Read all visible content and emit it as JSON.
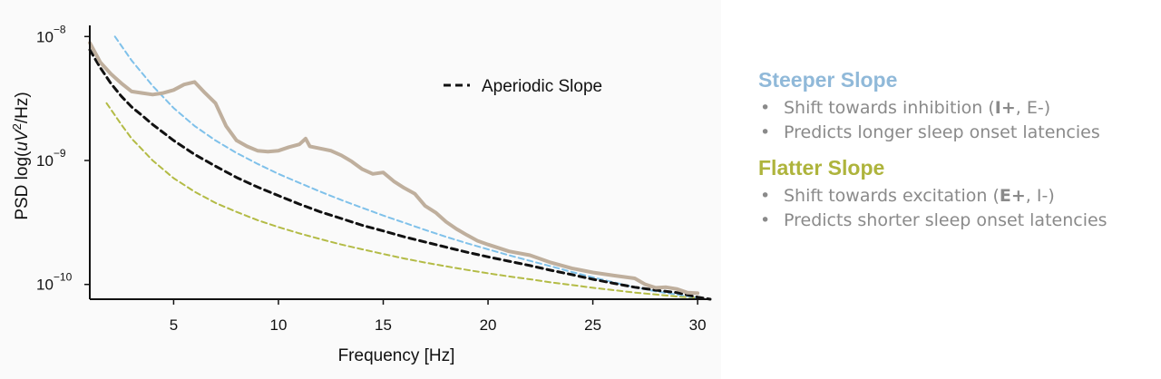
{
  "chart_data": {
    "type": "line",
    "xlabel": "Frequency [Hz]",
    "ylabel_prefix": "PSD log(",
    "ylabel_unit_base": "uV",
    "ylabel_unit_exp": "2",
    "ylabel_suffix": "/Hz)",
    "x_ticks": [
      5,
      10,
      15,
      20,
      25,
      30
    ],
    "y_ticks": [
      {
        "value": 1e-08,
        "base": "10",
        "exp": "−8"
      },
      {
        "value": 1e-09,
        "base": "10",
        "exp": "−9"
      },
      {
        "value": 1e-10,
        "base": "10",
        "exp": "−10"
      }
    ],
    "xlim": [
      1,
      30.6
    ],
    "ylim": [
      7.6e-11,
      1.23e-08
    ],
    "y_scale": "log",
    "grid": false,
    "legend": {
      "position": "top-center",
      "label": "Aperiodic Slope",
      "color": "#111111"
    },
    "colors": {
      "psd": "#bfaf9d",
      "aperiodic": "#111111",
      "steeper": "#7fc1ea",
      "flatter": "#b3bb45"
    },
    "series": [
      {
        "key": "psd",
        "style": "solid",
        "x": [
          1.0,
          1.5,
          2.0,
          2.5,
          3.0,
          3.5,
          4.0,
          4.5,
          5.0,
          5.5,
          6.0,
          6.5,
          7.0,
          7.5,
          8.0,
          8.5,
          9.0,
          9.5,
          10.0,
          10.5,
          11.0,
          11.3,
          11.5,
          12.0,
          12.5,
          13.0,
          13.5,
          14.0,
          14.5,
          15.0,
          15.5,
          16.0,
          16.5,
          17.0,
          17.5,
          18.0,
          18.5,
          19.0,
          19.5,
          20.0,
          21.0,
          22.0,
          23.0,
          24.0,
          25.0,
          26.0,
          27.0,
          27.5,
          28.0,
          28.5,
          29.0,
          29.5,
          30.0
        ],
        "y": [
          8.9e-09,
          6.2e-09,
          5e-09,
          4.2e-09,
          3.6e-09,
          3.5e-09,
          3.4e-09,
          3.5e-09,
          3.7e-09,
          4.1e-09,
          4.3e-09,
          3.5e-09,
          2.9e-09,
          1.9e-09,
          1.45e-09,
          1.3e-09,
          1.2e-09,
          1.18e-09,
          1.2e-09,
          1.28e-09,
          1.35e-09,
          1.5e-09,
          1.3e-09,
          1.25e-09,
          1.2e-09,
          1.1e-09,
          9.8e-10,
          8.5e-10,
          7.8e-10,
          8e-10,
          6.8e-10,
          6e-10,
          5.4e-10,
          4.3e-10,
          3.8e-10,
          3.2e-10,
          2.8e-10,
          2.5e-10,
          2.25e-10,
          2.1e-10,
          1.85e-10,
          1.72e-10,
          1.5e-10,
          1.35e-10,
          1.25e-10,
          1.18e-10,
          1.12e-10,
          1e-10,
          9.4e-11,
          9.5e-11,
          9.2e-11,
          8.6e-11,
          8.5e-11
        ]
      },
      {
        "key": "aperiodic",
        "style": "dashed",
        "x": [
          1.0,
          1.5,
          2.0,
          2.5,
          3.0,
          3.5,
          4.0,
          5.0,
          6.0,
          7.0,
          8.0,
          9.0,
          10.0,
          11.0,
          12.0,
          13.0,
          14.0,
          15.0,
          16.0,
          17.0,
          18.0,
          19.0,
          20.0,
          21.0,
          22.0,
          23.0,
          24.0,
          25.0,
          26.0,
          27.0,
          28.0,
          29.0,
          30.0,
          30.6
        ],
        "y": [
          7.8e-09,
          5.6e-09,
          4.2e-09,
          3.3e-09,
          2.7e-09,
          2.3e-09,
          1.95e-09,
          1.45e-09,
          1.12e-09,
          9e-10,
          7.3e-10,
          6.1e-10,
          5.2e-10,
          4.45e-10,
          3.85e-10,
          3.4e-10,
          3e-10,
          2.7e-10,
          2.42e-10,
          2.2e-10,
          2e-10,
          1.82e-10,
          1.67e-10,
          1.54e-10,
          1.42e-10,
          1.3e-10,
          1.2e-10,
          1.1e-10,
          1.02e-10,
          9.5e-11,
          9e-11,
          8.6e-11,
          7.9e-11,
          7.6e-11
        ]
      },
      {
        "key": "steeper",
        "style": "dashed",
        "x": [
          2.2,
          3.0,
          4.0,
          5.0,
          6.0,
          7.0,
          8.0,
          9.0,
          10.0,
          11.0,
          12.0,
          13.0,
          14.0,
          15.0,
          16.0,
          17.0,
          18.0,
          19.0,
          20.0,
          21.0,
          22.0,
          23.0,
          24.0,
          25.0,
          26.0,
          27.0,
          28.0,
          29.0,
          30.0
        ],
        "y": [
          1e-08,
          6.4e-09,
          4e-09,
          2.65e-09,
          1.9e-09,
          1.45e-09,
          1.15e-09,
          9.4e-10,
          7.8e-10,
          6.6e-10,
          5.6e-10,
          4.8e-10,
          4.15e-10,
          3.6e-10,
          3.15e-10,
          2.75e-10,
          2.42e-10,
          2.15e-10,
          1.92e-10,
          1.72e-10,
          1.55e-10,
          1.4e-10,
          1.26e-10,
          1.14e-10,
          1.04e-10,
          9.5e-11,
          8.8e-11,
          8.3e-11,
          7.8e-11
        ]
      },
      {
        "key": "flatter",
        "style": "dashed",
        "x": [
          1.8,
          2.5,
          3.0,
          4.0,
          5.0,
          6.0,
          7.0,
          8.0,
          9.0,
          10.0,
          11.0,
          12.0,
          13.0,
          14.0,
          15.0,
          16.0,
          17.0,
          18.0,
          19.0,
          20.0,
          21.0,
          22.0,
          23.0,
          24.0,
          25.0,
          26.0,
          27.0,
          28.0,
          29.0,
          30.0
        ],
        "y": [
          2.9e-09,
          1.95e-09,
          1.5e-09,
          1e-09,
          7.2e-10,
          5.6e-10,
          4.55e-10,
          3.85e-10,
          3.3e-10,
          2.9e-10,
          2.58e-10,
          2.32e-10,
          2.1e-10,
          1.92e-10,
          1.76e-10,
          1.62e-10,
          1.5e-10,
          1.4e-10,
          1.31e-10,
          1.23e-10,
          1.16e-10,
          1.1e-10,
          1.04e-10,
          9.9e-11,
          9.4e-11,
          9e-11,
          8.6e-11,
          8.3e-11,
          8e-11,
          7.8e-11
        ]
      }
    ]
  },
  "side_panel": {
    "steeper": {
      "title": "Steeper Slope",
      "color": "#90b9d9",
      "items": [
        {
          "pre": "Shift towards inhibition (",
          "bold": "I+",
          "post": ", E-)"
        },
        {
          "pre": "Predicts longer sleep onset latencies",
          "bold": "",
          "post": ""
        }
      ]
    },
    "flatter": {
      "title": "Flatter Slope",
      "color": "#aeb43c",
      "items": [
        {
          "pre": "Shift towards excitation (",
          "bold": "E+",
          "post": ", I-)"
        },
        {
          "pre": "Predicts shorter sleep onset latencies",
          "bold": "",
          "post": ""
        }
      ]
    },
    "bullet_glyph": "•"
  }
}
